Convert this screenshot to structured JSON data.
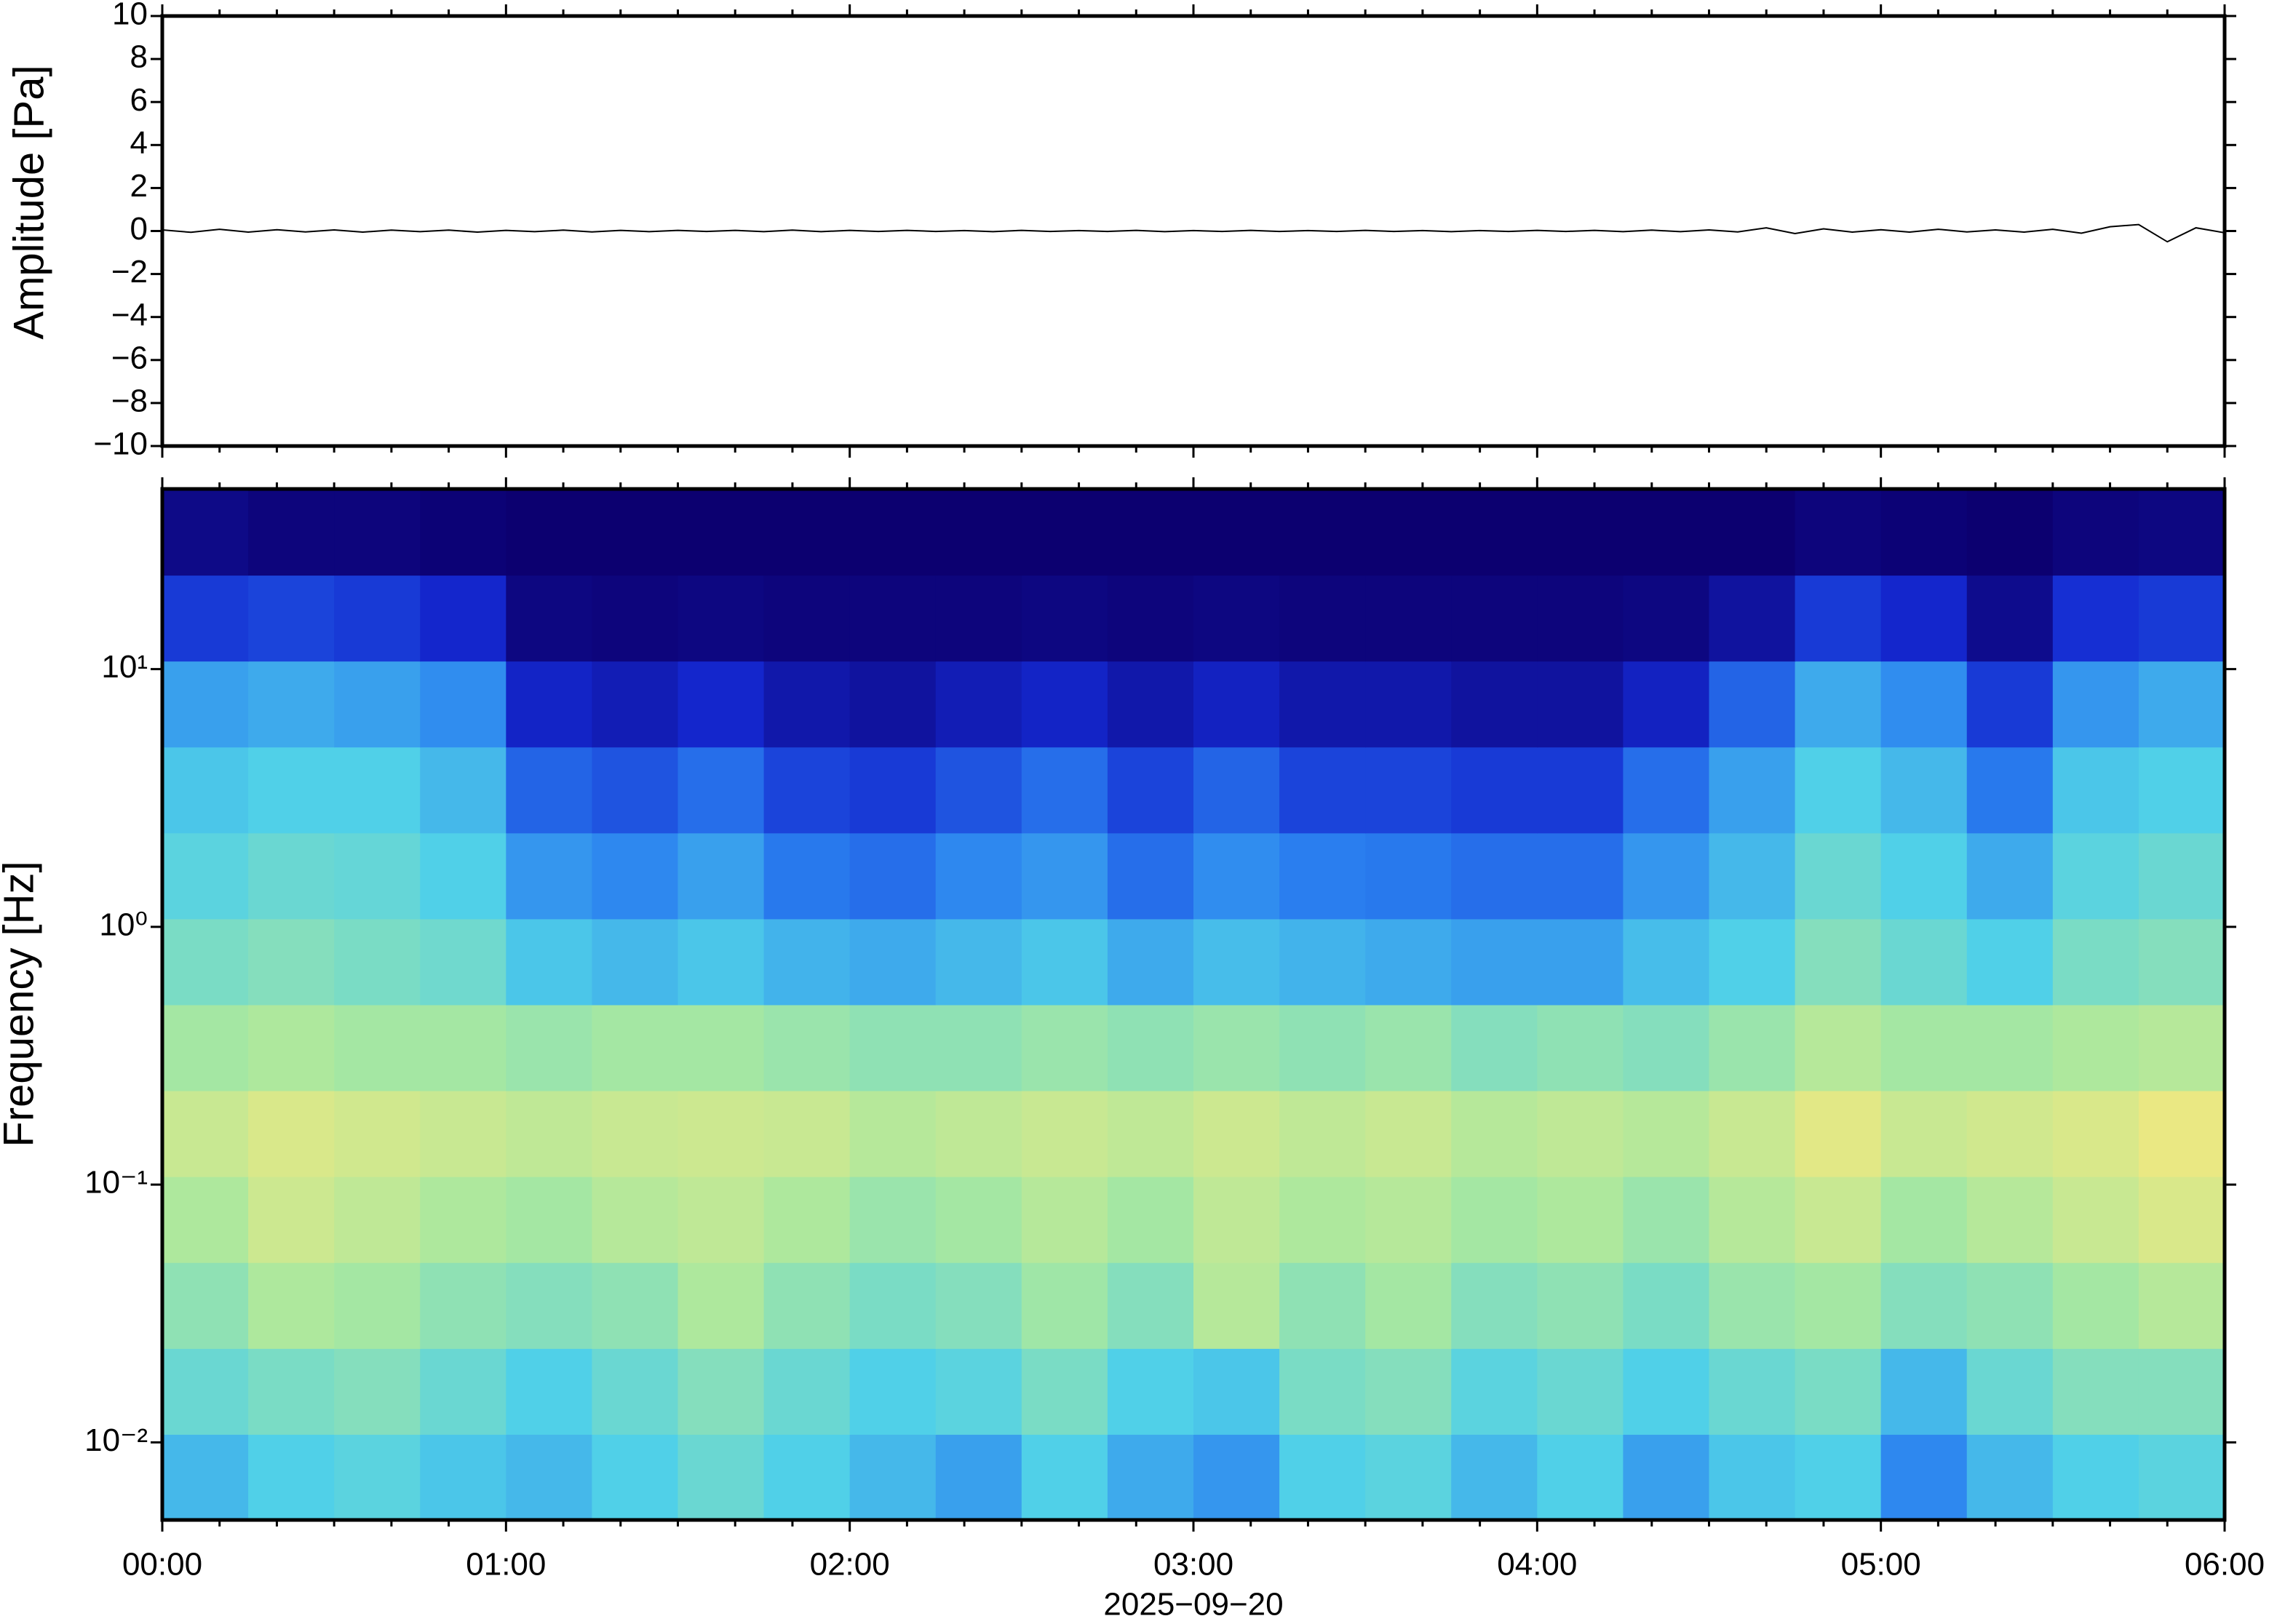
{
  "chart_data": [
    {
      "type": "line",
      "ylabel": "Amplitude [Pa]",
      "x": [
        0,
        5,
        10,
        15,
        20,
        25,
        30,
        35,
        40,
        45,
        50,
        55,
        60,
        65,
        70,
        75,
        80,
        85,
        90,
        95,
        100,
        105,
        110,
        115,
        120,
        125,
        130,
        135,
        140,
        145,
        150,
        155,
        160,
        165,
        170,
        175,
        180,
        185,
        190,
        195,
        200,
        205,
        210,
        215,
        220,
        225,
        230,
        235,
        240,
        245,
        250,
        255,
        260,
        265,
        270,
        275,
        280,
        285,
        290,
        295,
        300,
        305,
        310,
        315,
        320,
        325,
        330,
        335,
        340,
        345,
        350,
        355,
        360
      ],
      "series": [
        {
          "name": "Amplitude",
          "color": "#000000",
          "values": [
            0.05,
            -0.06,
            0.08,
            -0.05,
            0.06,
            -0.04,
            0.05,
            -0.05,
            0.04,
            -0.03,
            0.04,
            -0.05,
            0.03,
            -0.03,
            0.04,
            -0.04,
            0.03,
            -0.03,
            0.03,
            -0.02,
            0.03,
            -0.03,
            0.04,
            -0.03,
            0.03,
            -0.02,
            0.03,
            -0.02,
            0.02,
            -0.03,
            0.03,
            -0.02,
            0.02,
            -0.02,
            0.03,
            -0.03,
            0.02,
            -0.02,
            0.03,
            -0.02,
            0.02,
            -0.02,
            0.03,
            -0.02,
            0.02,
            -0.03,
            0.02,
            -0.02,
            0.03,
            -0.02,
            0.03,
            -0.03,
            0.04,
            -0.03,
            0.05,
            -0.04,
            0.15,
            -0.12,
            0.1,
            -0.05,
            0.06,
            -0.05,
            0.08,
            -0.04,
            0.05,
            -0.05,
            0.08,
            -0.1,
            0.2,
            0.3,
            -0.5,
            0.15,
            -0.08
          ]
        }
      ],
      "xlim": [
        0,
        360
      ],
      "xticks": [
        0,
        60,
        120,
        180,
        240,
        300,
        360
      ],
      "xminorticks": [
        10,
        20,
        30,
        40,
        50,
        70,
        80,
        90,
        100,
        110,
        130,
        140,
        150,
        160,
        170,
        190,
        200,
        210,
        220,
        230,
        250,
        260,
        270,
        280,
        290,
        310,
        320,
        330,
        340,
        350
      ],
      "ylim": [
        -10,
        10
      ],
      "yticks": [
        {
          "value": -10,
          "label": "−10"
        },
        {
          "value": -8,
          "label": "−8"
        },
        {
          "value": -6,
          "label": "−6"
        },
        {
          "value": -4,
          "label": "−4"
        },
        {
          "value": -2,
          "label": "−2"
        },
        0,
        2,
        4,
        6,
        8,
        10
      ]
    },
    {
      "type": "heatmap",
      "ylabel": "Frequency [Hz]",
      "xlabel": "2025−09−20",
      "yscale": "log",
      "xlim": [
        0,
        360
      ],
      "xticks": [
        {
          "value": 0,
          "label": "00:00"
        },
        {
          "value": 60,
          "label": "01:00"
        },
        {
          "value": 120,
          "label": "02:00"
        },
        {
          "value": 180,
          "label": "03:00"
        },
        {
          "value": 240,
          "label": "04:00"
        },
        {
          "value": 300,
          "label": "05:00"
        },
        {
          "value": 360,
          "label": "06:00"
        }
      ],
      "xminorticks": [
        10,
        20,
        30,
        40,
        50,
        70,
        80,
        90,
        100,
        110,
        130,
        140,
        150,
        160,
        170,
        190,
        200,
        210,
        220,
        230,
        250,
        260,
        270,
        280,
        290,
        310,
        320,
        330,
        340,
        350
      ],
      "ylim": [
        0.005,
        50
      ],
      "yticks": [
        {
          "value": 0.01,
          "label": "10⁻²"
        },
        {
          "value": 0.1,
          "label": "10⁻¹"
        },
        {
          "value": 1,
          "label": "10⁰"
        },
        {
          "value": 10,
          "label": "10¹"
        }
      ],
      "colormap": [
        "#0c0070",
        "#1428d0",
        "#2a80f0",
        "#50d0e8",
        "#a8e8a0",
        "#f0e880",
        "#f8a060"
      ],
      "z": [
        [
          0.45,
          0.5,
          0.52,
          0.48,
          0.45,
          0.5,
          0.55,
          0.5,
          0.45,
          0.4,
          0.5,
          0.42,
          0.38,
          0.5,
          0.52,
          0.45,
          0.5,
          0.4,
          0.48,
          0.5,
          0.35,
          0.45,
          0.5,
          0.52
        ],
        [
          0.55,
          0.58,
          0.6,
          0.55,
          0.5,
          0.55,
          0.6,
          0.55,
          0.5,
          0.52,
          0.58,
          0.5,
          0.48,
          0.58,
          0.6,
          0.52,
          0.55,
          0.5,
          0.55,
          0.58,
          0.45,
          0.55,
          0.6,
          0.6
        ],
        [
          0.62,
          0.68,
          0.66,
          0.62,
          0.6,
          0.62,
          0.68,
          0.62,
          0.58,
          0.6,
          0.65,
          0.6,
          0.7,
          0.62,
          0.66,
          0.6,
          0.62,
          0.58,
          0.64,
          0.66,
          0.6,
          0.62,
          0.66,
          0.7
        ],
        [
          0.68,
          0.75,
          0.72,
          0.68,
          0.66,
          0.7,
          0.72,
          0.68,
          0.64,
          0.66,
          0.7,
          0.66,
          0.72,
          0.68,
          0.7,
          0.66,
          0.68,
          0.64,
          0.7,
          0.74,
          0.66,
          0.7,
          0.74,
          0.78
        ],
        [
          0.74,
          0.78,
          0.76,
          0.74,
          0.72,
          0.74,
          0.75,
          0.74,
          0.7,
          0.72,
          0.74,
          0.72,
          0.75,
          0.72,
          0.74,
          0.7,
          0.72,
          0.7,
          0.74,
          0.8,
          0.74,
          0.76,
          0.78,
          0.82
        ],
        [
          0.66,
          0.68,
          0.66,
          0.66,
          0.64,
          0.66,
          0.66,
          0.64,
          0.62,
          0.62,
          0.64,
          0.62,
          0.64,
          0.62,
          0.64,
          0.6,
          0.62,
          0.6,
          0.64,
          0.7,
          0.66,
          0.66,
          0.68,
          0.7
        ],
        [
          0.58,
          0.6,
          0.58,
          0.56,
          0.48,
          0.45,
          0.48,
          0.44,
          0.42,
          0.45,
          0.48,
          0.42,
          0.46,
          0.44,
          0.42,
          0.4,
          0.4,
          0.46,
          0.5,
          0.6,
          0.55,
          0.5,
          0.58,
          0.6
        ],
        [
          0.52,
          0.55,
          0.54,
          0.5,
          0.38,
          0.35,
          0.4,
          0.32,
          0.3,
          0.35,
          0.38,
          0.3,
          0.36,
          0.33,
          0.32,
          0.3,
          0.3,
          0.38,
          0.45,
          0.55,
          0.5,
          0.42,
          0.52,
          0.55
        ],
        [
          0.48,
          0.5,
          0.5,
          0.45,
          0.28,
          0.25,
          0.3,
          0.22,
          0.2,
          0.25,
          0.3,
          0.22,
          0.28,
          0.22,
          0.22,
          0.2,
          0.2,
          0.3,
          0.4,
          0.5,
          0.45,
          0.32,
          0.48,
          0.5
        ],
        [
          0.4,
          0.42,
          0.4,
          0.36,
          0.15,
          0.12,
          0.16,
          0.1,
          0.08,
          0.12,
          0.15,
          0.1,
          0.14,
          0.1,
          0.1,
          0.08,
          0.08,
          0.14,
          0.28,
          0.42,
          0.36,
          0.2,
          0.38,
          0.42
        ],
        [
          0.2,
          0.22,
          0.2,
          0.16,
          0.03,
          0.02,
          0.03,
          0.02,
          0.02,
          0.02,
          0.03,
          0.02,
          0.03,
          0.02,
          0.02,
          0.02,
          0.02,
          0.03,
          0.08,
          0.2,
          0.16,
          0.05,
          0.18,
          0.2
        ],
        [
          0.04,
          0.02,
          0.02,
          0.01,
          0,
          0,
          0,
          0,
          0,
          0,
          0,
          0,
          0,
          0,
          0,
          0,
          0,
          0,
          0,
          0.02,
          0.01,
          0,
          0.02,
          0.03
        ]
      ]
    }
  ]
}
